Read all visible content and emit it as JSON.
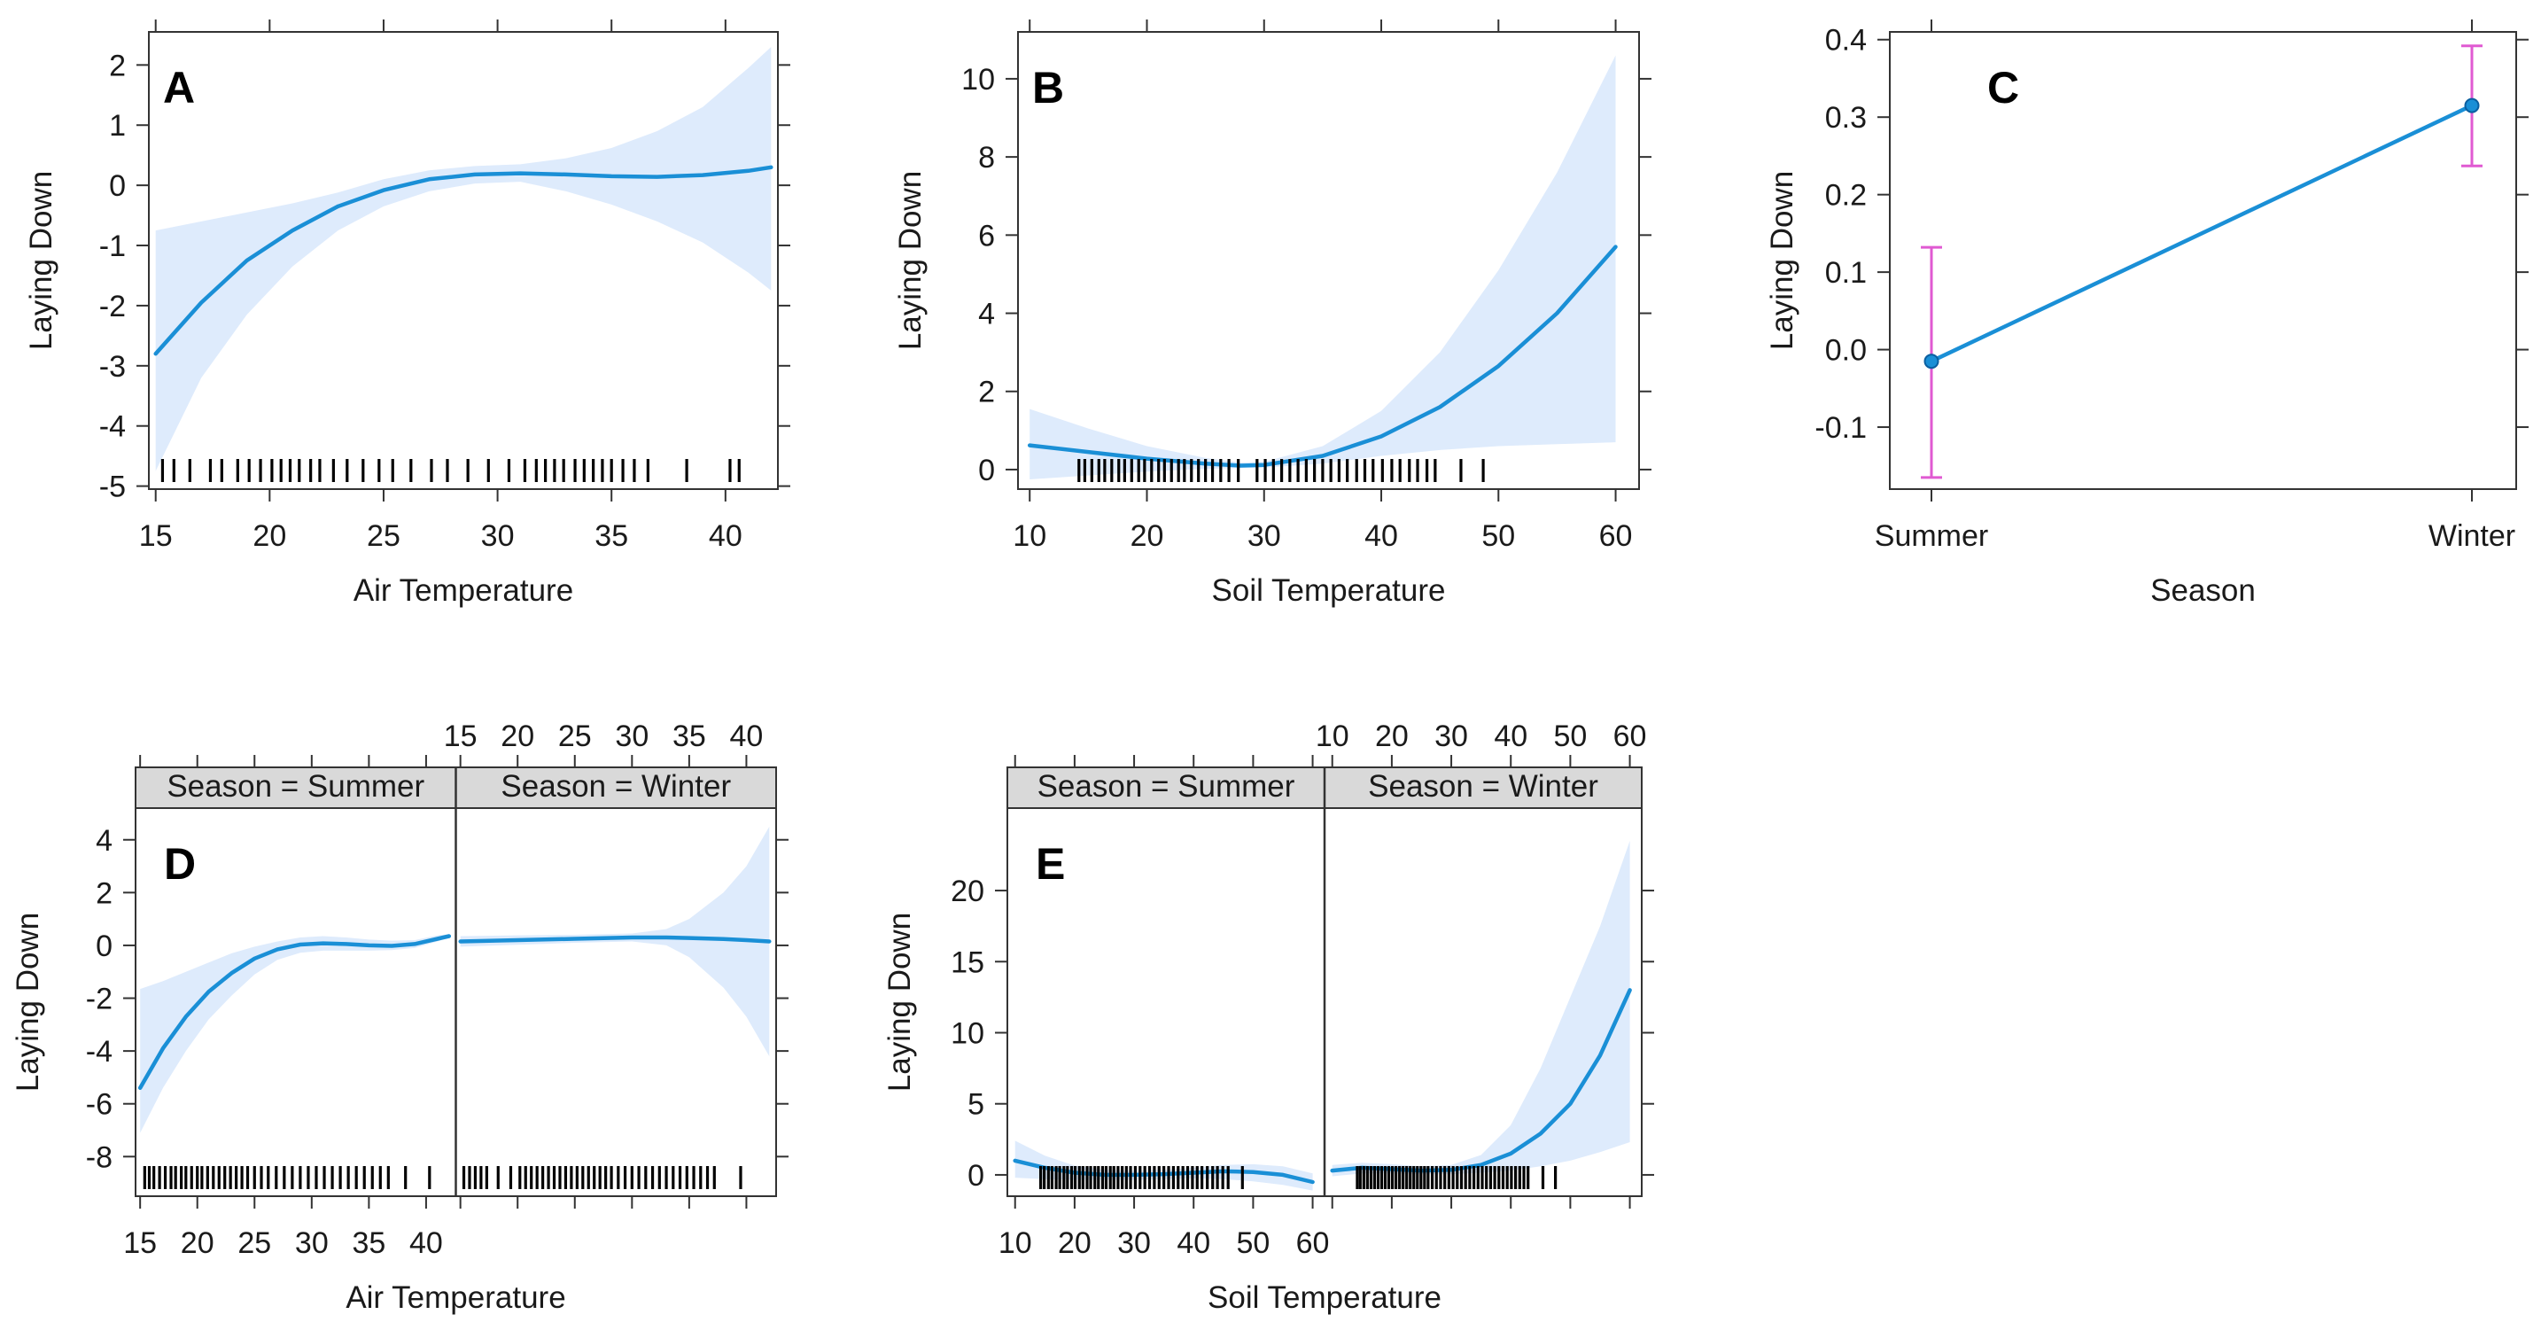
{
  "figure": {
    "colors": {
      "line": "#1a8fd6",
      "band": "#deebfc",
      "errorbar": "#e05ad2",
      "rug": "#000000",
      "strip": "#d9d9d9",
      "axis": "#333333"
    }
  },
  "chart_data": [
    {
      "id": "A",
      "type": "line",
      "panel_label": "A",
      "xlabel": "Air Temperature",
      "ylabel": "Laying Down",
      "xlim": [
        14.7,
        42.3
      ],
      "ylim": [
        -5.05,
        2.55
      ],
      "xticks": [
        15,
        20,
        25,
        30,
        35,
        40
      ],
      "xtick_labels": [
        "15",
        "20",
        "25",
        "30",
        "35",
        "40"
      ],
      "yticks": [
        -5,
        -4,
        -3,
        -2,
        -1,
        0,
        1,
        2
      ],
      "ytick_labels": [
        "-5",
        "-4",
        "-3",
        "-2",
        "-1",
        "0",
        "1",
        "2"
      ],
      "x": [
        15,
        17,
        19,
        21,
        23,
        25,
        27,
        29,
        31,
        33,
        35,
        37,
        39,
        41,
        42
      ],
      "fit": [
        -2.8,
        -1.95,
        -1.25,
        -0.75,
        -0.35,
        -0.08,
        0.1,
        0.18,
        0.2,
        0.18,
        0.15,
        0.14,
        0.17,
        0.24,
        0.3
      ],
      "lower": [
        -4.75,
        -3.2,
        -2.15,
        -1.35,
        -0.75,
        -0.35,
        -0.1,
        0.03,
        0.06,
        -0.1,
        -0.32,
        -0.6,
        -0.95,
        -1.45,
        -1.75
      ],
      "upper": [
        -0.75,
        -0.6,
        -0.45,
        -0.3,
        -0.12,
        0.1,
        0.25,
        0.32,
        0.35,
        0.45,
        0.62,
        0.9,
        1.3,
        1.95,
        2.3
      ],
      "rug": [
        15.3,
        15.8,
        16.5,
        17.4,
        17.9,
        18.6,
        19.1,
        19.6,
        20.1,
        20.5,
        20.9,
        21.3,
        21.8,
        22.2,
        22.8,
        23.4,
        24.1,
        24.8,
        25.4,
        26.2,
        27.1,
        27.8,
        28.7,
        29.6,
        30.5,
        31.2,
        31.7,
        32.1,
        32.5,
        32.9,
        33.4,
        33.8,
        34.2,
        34.6,
        35.0,
        35.5,
        36.0,
        36.6,
        38.3,
        40.2,
        40.6
      ]
    },
    {
      "id": "B",
      "type": "line",
      "panel_label": "B",
      "xlabel": "Soil Temperature",
      "ylabel": "Laying Down",
      "xlim": [
        9,
        62
      ],
      "ylim": [
        -0.5,
        11.2
      ],
      "xticks": [
        10,
        20,
        30,
        40,
        50,
        60
      ],
      "xtick_labels": [
        "10",
        "20",
        "30",
        "40",
        "50",
        "60"
      ],
      "yticks": [
        0,
        2,
        4,
        6,
        8,
        10
      ],
      "ytick_labels": [
        "0",
        "2",
        "4",
        "6",
        "8",
        "10"
      ],
      "x": [
        10,
        15,
        20,
        25,
        28,
        30,
        35,
        40,
        45,
        50,
        55,
        60
      ],
      "fit": [
        0.62,
        0.45,
        0.28,
        0.15,
        0.1,
        0.12,
        0.35,
        0.85,
        1.6,
        2.65,
        4.0,
        5.7
      ],
      "lower": [
        -0.25,
        -0.15,
        -0.05,
        0.02,
        0.04,
        0.05,
        0.15,
        0.35,
        0.5,
        0.6,
        0.65,
        0.7
      ],
      "upper": [
        1.55,
        1.05,
        0.6,
        0.3,
        0.18,
        0.2,
        0.6,
        1.5,
        3.0,
        5.1,
        7.6,
        10.6
      ],
      "rug": [
        14.2,
        14.7,
        15.3,
        15.9,
        16.4,
        17.0,
        17.6,
        18.1,
        18.7,
        19.3,
        19.8,
        20.4,
        21.0,
        21.5,
        22.1,
        22.7,
        23.2,
        23.8,
        24.4,
        25.0,
        25.6,
        26.3,
        27.0,
        27.8,
        29.4,
        30.1,
        30.8,
        31.5,
        32.2,
        32.9,
        33.6,
        34.3,
        35.0,
        35.7,
        36.4,
        37.1,
        37.9,
        38.6,
        39.3,
        40.1,
        40.9,
        41.6,
        42.4,
        43.1,
        43.9,
        44.6,
        46.8,
        48.7
      ]
    },
    {
      "id": "C",
      "type": "line",
      "panel_label": "C",
      "xlabel": "Season",
      "ylabel": "Laying Down",
      "categories": [
        "Summer",
        "Winter"
      ],
      "ylim": [
        -0.18,
        0.41
      ],
      "yticks": [
        -0.1,
        0.0,
        0.1,
        0.2,
        0.3,
        0.4
      ],
      "ytick_labels": [
        "-0.1",
        "0.0",
        "0.1",
        "0.2",
        "0.3",
        "0.4"
      ],
      "values": [
        -0.015,
        0.315
      ],
      "lower": [
        -0.165,
        0.237
      ],
      "upper": [
        0.132,
        0.392
      ]
    },
    {
      "id": "D",
      "type": "line",
      "panel_label": "D",
      "xlabel": "Air Temperature",
      "ylabel": "Laying Down",
      "xlim": [
        14.6,
        42.6
      ],
      "ylim": [
        -9.5,
        5.2
      ],
      "bottom_ticks": [
        15,
        20,
        25,
        30,
        35,
        40
      ],
      "bottom_tick_labels": [
        "15",
        "20",
        "25",
        "30",
        "35",
        "40"
      ],
      "top_ticks": [
        15,
        20,
        25,
        30,
        35,
        40
      ],
      "top_tick_labels": [
        "15",
        "20",
        "25",
        "30",
        "35",
        "40"
      ],
      "yticks": [
        -8,
        -6,
        -4,
        -2,
        0,
        2,
        4
      ],
      "ytick_labels": [
        "-8",
        "-6",
        "-4",
        "-2",
        "0",
        "2",
        "4"
      ],
      "strips": [
        {
          "label": "Season = Summer",
          "x": [
            15,
            17,
            19,
            21,
            23,
            25,
            27,
            29,
            31,
            33,
            35,
            37,
            39,
            41,
            42
          ],
          "fit": [
            -5.4,
            -3.9,
            -2.7,
            -1.75,
            -1.05,
            -0.5,
            -0.15,
            0.03,
            0.08,
            0.05,
            0.0,
            -0.02,
            0.05,
            0.25,
            0.35
          ],
          "lower": [
            -7.1,
            -5.4,
            -4.0,
            -2.8,
            -1.9,
            -1.1,
            -0.55,
            -0.28,
            -0.2,
            -0.2,
            -0.2,
            -0.18,
            -0.1,
            0.15,
            0.3
          ],
          "upper": [
            -1.65,
            -1.35,
            -1.0,
            -0.65,
            -0.3,
            -0.05,
            0.15,
            0.3,
            0.35,
            0.3,
            0.22,
            0.18,
            0.2,
            0.38,
            0.42
          ],
          "rug": [
            15.4,
            15.8,
            16.2,
            16.7,
            17.2,
            17.7,
            18.1,
            18.6,
            19.0,
            19.5,
            20.0,
            20.4,
            20.9,
            21.4,
            21.9,
            22.4,
            22.9,
            23.4,
            23.9,
            24.4,
            25.0,
            25.6,
            26.2,
            26.9,
            27.6,
            28.3,
            29.0,
            29.7,
            30.4,
            31.1,
            31.8,
            32.5,
            33.2,
            33.9,
            34.6,
            35.3,
            36.0,
            36.7,
            38.2,
            40.3
          ]
        },
        {
          "label": "Season = Winter",
          "x": [
            15,
            20,
            25,
            30,
            33,
            35,
            38,
            40,
            42
          ],
          "fit": [
            0.15,
            0.2,
            0.25,
            0.3,
            0.3,
            0.28,
            0.24,
            0.2,
            0.15
          ],
          "lower": [
            -0.05,
            0.02,
            0.1,
            0.15,
            0.0,
            -0.45,
            -1.6,
            -2.7,
            -4.2
          ],
          "upper": [
            0.35,
            0.38,
            0.4,
            0.45,
            0.62,
            1.0,
            2.0,
            3.0,
            4.5
          ],
          "rug": [
            15.3,
            15.8,
            16.3,
            16.8,
            17.3,
            18.3,
            19.4,
            20.2,
            20.7,
            21.2,
            21.7,
            22.2,
            22.7,
            23.2,
            23.7,
            24.2,
            24.7,
            25.2,
            25.7,
            26.2,
            26.7,
            27.2,
            27.7,
            28.2,
            28.8,
            29.4,
            30.0,
            30.6,
            31.2,
            31.8,
            32.4,
            33.0,
            33.6,
            34.2,
            34.8,
            35.4,
            36.0,
            36.6,
            37.2,
            39.5
          ]
        }
      ]
    },
    {
      "id": "E",
      "type": "line",
      "panel_label": "E",
      "xlabel": "Soil Temperature",
      "ylabel": "Laying Down",
      "xlim": [
        8.7,
        62
      ],
      "ylim": [
        -1.5,
        25.8
      ],
      "bottom_ticks": [
        10,
        20,
        30,
        40,
        50,
        60
      ],
      "bottom_tick_labels": [
        "10",
        "20",
        "30",
        "40",
        "50",
        "60"
      ],
      "top_ticks": [
        10,
        20,
        30,
        40,
        50,
        60
      ],
      "top_tick_labels": [
        "10",
        "20",
        "30",
        "40",
        "50",
        "60"
      ],
      "yticks": [
        0,
        5,
        10,
        15,
        20
      ],
      "ytick_labels": [
        "0",
        "5",
        "10",
        "15",
        "20"
      ],
      "strips": [
        {
          "label": "Season = Summer",
          "x": [
            10,
            15,
            20,
            25,
            30,
            35,
            40,
            45,
            50,
            55,
            60
          ],
          "fit": [
            1.0,
            0.5,
            0.15,
            0.0,
            0.0,
            0.05,
            0.15,
            0.25,
            0.2,
            0.0,
            -0.5
          ],
          "lower": [
            -0.2,
            -0.3,
            -0.35,
            -0.35,
            -0.35,
            -0.3,
            -0.25,
            -0.3,
            -0.45,
            -0.7,
            -1.1
          ],
          "upper": [
            2.4,
            1.35,
            0.65,
            0.35,
            0.3,
            0.35,
            0.5,
            0.7,
            0.75,
            0.6,
            0.1
          ],
          "rug": [
            14.3,
            14.9,
            15.6,
            16.2,
            16.9,
            17.5,
            18.2,
            18.8,
            19.5,
            20.1,
            20.8,
            21.4,
            22.1,
            22.7,
            23.4,
            24.0,
            24.7,
            25.3,
            26.0,
            26.6,
            27.3,
            28.0,
            28.7,
            29.4,
            30.2,
            31.0,
            31.8,
            32.6,
            33.4,
            34.2,
            35.0,
            35.8,
            36.6,
            37.4,
            38.2,
            39.0,
            39.8,
            40.6,
            41.4,
            42.3,
            43.2,
            44.0,
            44.9,
            45.8,
            48.2
          ]
        },
        {
          "label": "Season = Winter",
          "x": [
            10,
            15,
            20,
            25,
            30,
            35,
            40,
            45,
            50,
            55,
            60
          ],
          "fit": [
            0.3,
            0.5,
            0.4,
            0.3,
            0.35,
            0.7,
            1.5,
            2.9,
            5.0,
            8.4,
            13.0
          ],
          "lower": [
            -0.1,
            0.1,
            0.1,
            0.05,
            0.05,
            0.15,
            0.3,
            0.6,
            1.0,
            1.6,
            2.3
          ],
          "upper": [
            0.7,
            0.85,
            0.75,
            0.6,
            0.7,
            1.4,
            3.5,
            7.5,
            12.5,
            17.5,
            23.5
          ],
          "rug": [
            14.2,
            14.7,
            15.3,
            15.9,
            16.5,
            17.1,
            17.7,
            18.3,
            18.9,
            19.5,
            20.1,
            20.7,
            21.3,
            21.9,
            22.5,
            23.1,
            23.7,
            24.3,
            24.9,
            25.5,
            26.1,
            26.8,
            27.5,
            28.2,
            28.9,
            29.6,
            30.3,
            31.0,
            31.7,
            32.4,
            33.1,
            33.8,
            34.5,
            35.2,
            35.9,
            36.6,
            37.3,
            38.0,
            38.7,
            39.4,
            40.1,
            40.8,
            41.5,
            42.2,
            42.9,
            45.4,
            47.5
          ]
        }
      ]
    }
  ]
}
